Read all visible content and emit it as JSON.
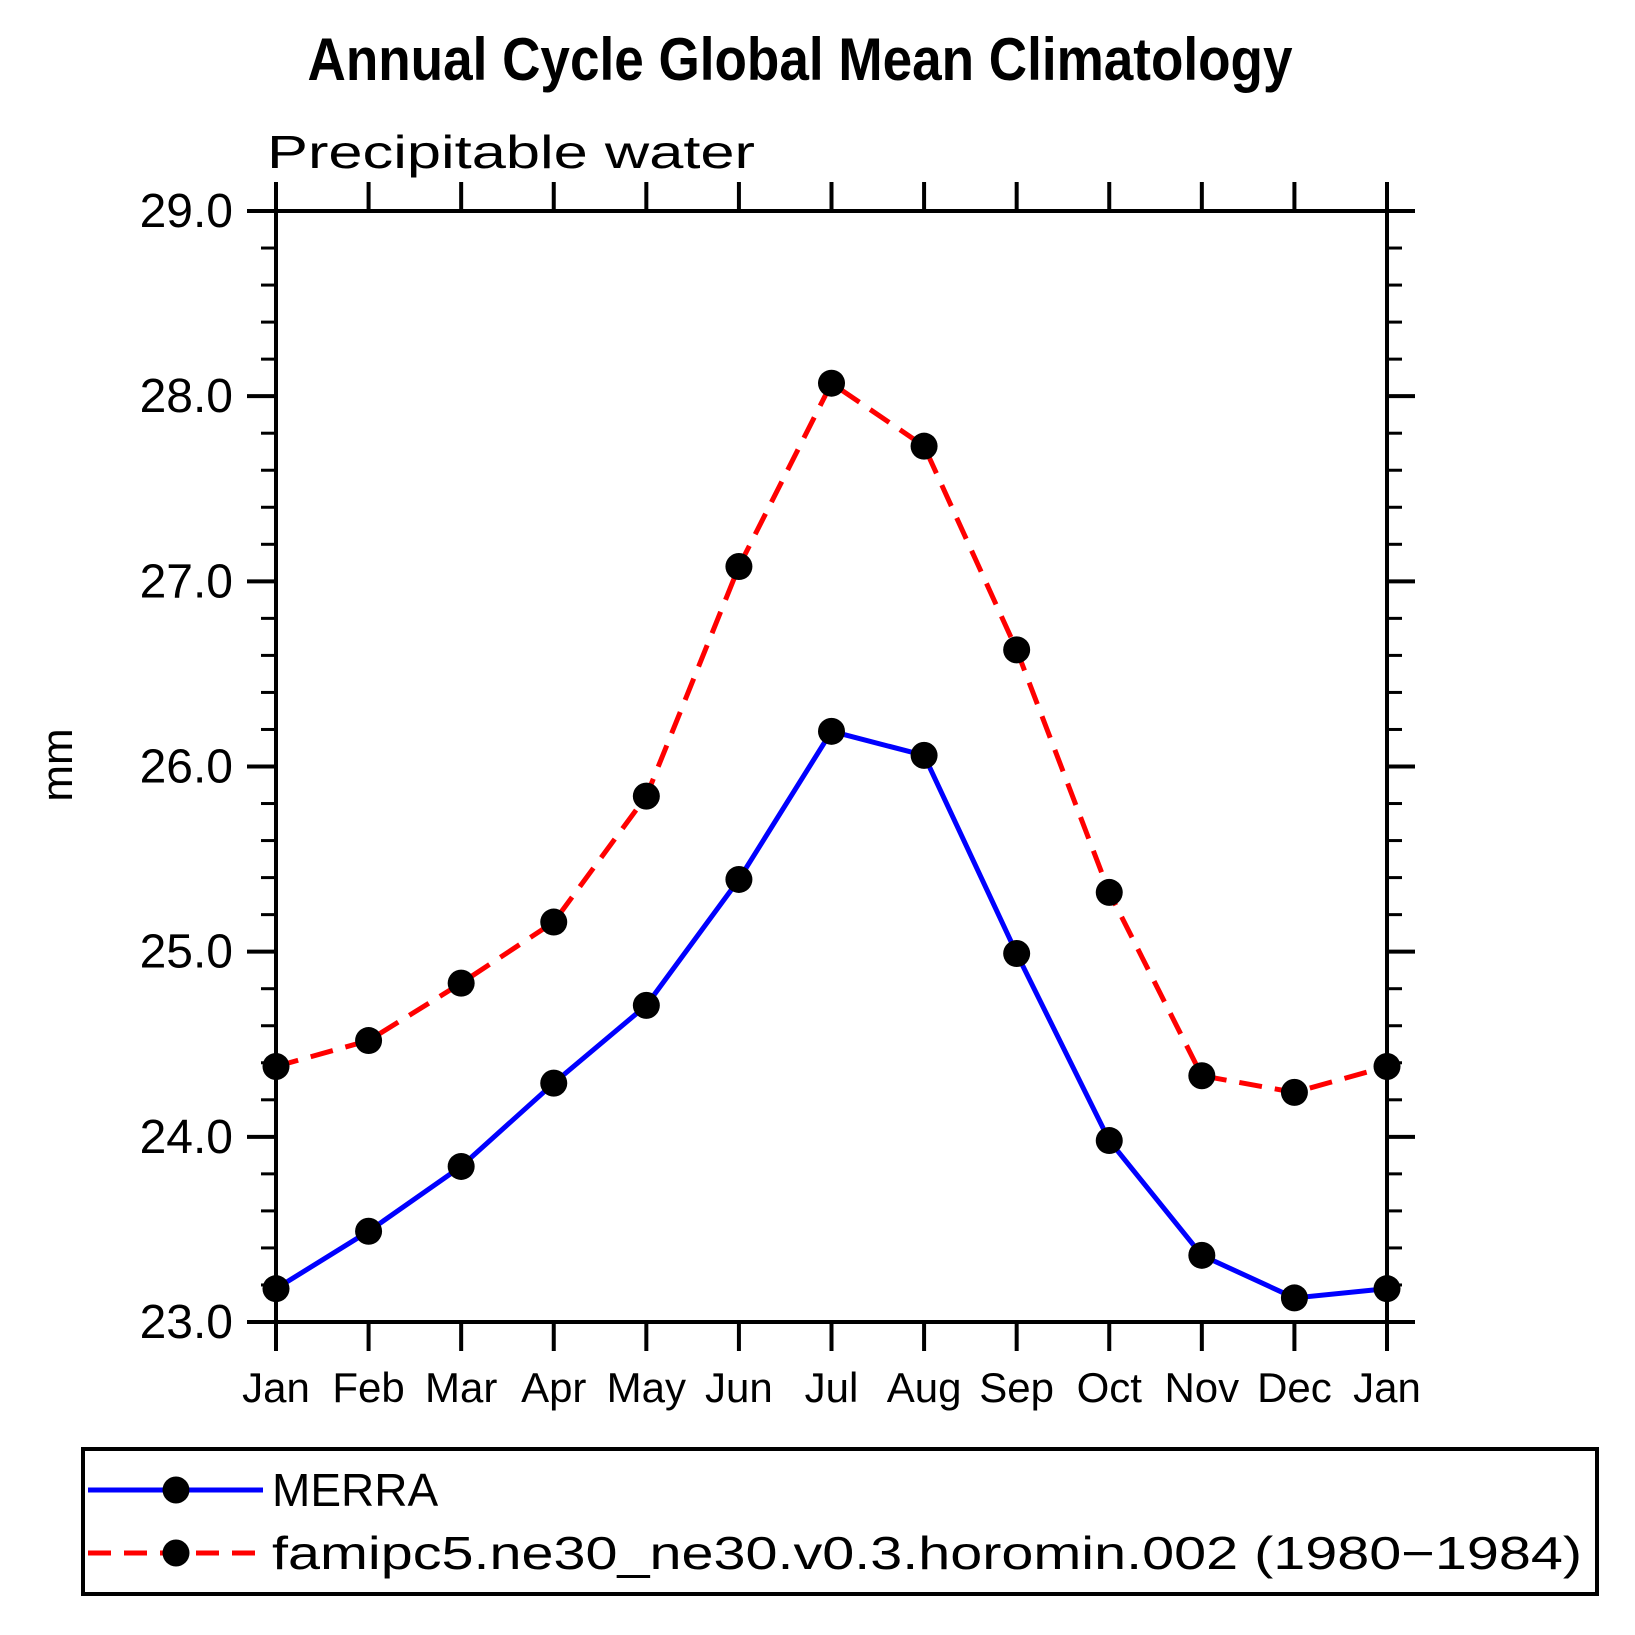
{
  "title": "Annual Cycle Global Mean Climatology",
  "subtitle": "Precipitable water",
  "ylabel": "mm",
  "chart_data": {
    "type": "line",
    "categories": [
      "Jan",
      "Feb",
      "Mar",
      "Apr",
      "May",
      "Jun",
      "Jul",
      "Aug",
      "Sep",
      "Oct",
      "Nov",
      "Dec",
      "Jan"
    ],
    "series": [
      {
        "name": "MERRA",
        "color": "#0000ff",
        "style": "solid",
        "marker": "black-dot",
        "values": [
          23.18,
          23.49,
          23.84,
          24.29,
          24.71,
          25.39,
          26.19,
          26.06,
          24.99,
          23.98,
          23.36,
          23.13,
          23.18
        ]
      },
      {
        "name": "famipc5.ne30_ne30.v0.3.horomin.002 (1980−1984)",
        "color": "#ff0000",
        "style": "dashed",
        "marker": "black-dot",
        "values": [
          24.38,
          24.52,
          24.83,
          25.16,
          25.84,
          27.08,
          28.07,
          27.73,
          26.63,
          25.32,
          24.33,
          24.24,
          24.38
        ]
      }
    ],
    "ylim": [
      23.0,
      29.0
    ],
    "ytick_step": 1.0,
    "yminor_step": 0.2,
    "ytick_labels": [
      "23.0",
      "24.0",
      "25.0",
      "26.0",
      "27.0",
      "28.0",
      "29.0"
    ],
    "grid": false,
    "legend_position": "bottom",
    "marker_color": "#000000",
    "axis_color": "#000000"
  }
}
